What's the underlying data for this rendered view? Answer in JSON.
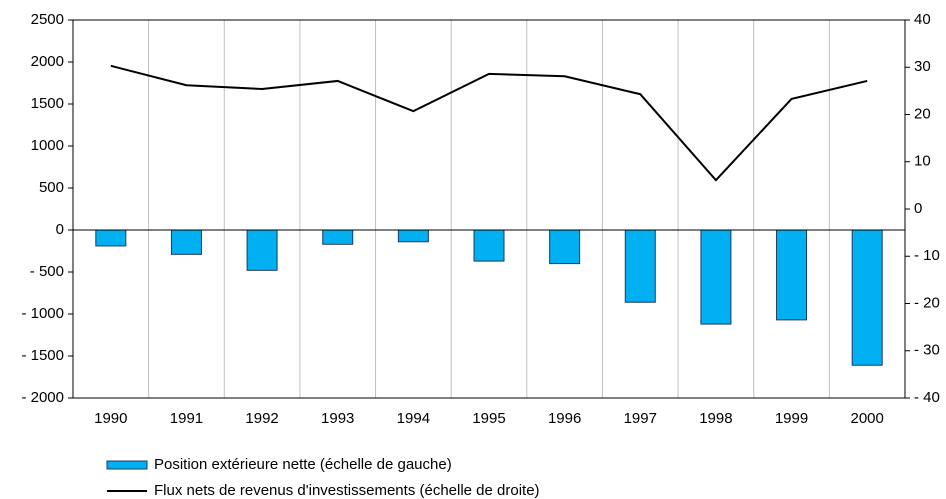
{
  "chart_data": {
    "type": "bar-line",
    "categories": [
      "1990",
      "1991",
      "1992",
      "1993",
      "1994",
      "1995",
      "1996",
      "1997",
      "1998",
      "1999",
      "2000"
    ],
    "series": [
      {
        "name": "Position extérieure nette (échelle de gauche)",
        "type": "bar",
        "color": "#00b0f0",
        "values": [
          -190,
          -290,
          -480,
          -170,
          -140,
          -370,
          -400,
          -860,
          -1120,
          -1070,
          -1610
        ]
      },
      {
        "name": "Flux nets de revenus d'investissements (échelle de droite)",
        "type": "line",
        "color": "#000000",
        "axis": "y2",
        "values": [
          30.3,
          26.2,
          25.4,
          27.1,
          20.7,
          28.6,
          28.1,
          24.3,
          6.1,
          23.3,
          27.1
        ]
      }
    ],
    "ylim": [
      -2000,
      2500
    ],
    "yticks": [
      {
        "value": -2000,
        "label": "- 2000"
      },
      {
        "value": -1500,
        "label": "- 1500"
      },
      {
        "value": -1000,
        "label": "- 1000"
      },
      {
        "value": -500,
        "label": "- 500"
      },
      0,
      500,
      1000,
      1500,
      2000,
      2500
    ],
    "y2lim": [
      -40,
      40
    ],
    "y2ticks": [
      {
        "value": -40,
        "label": "- 40"
      },
      {
        "value": -30,
        "label": "- 30"
      },
      {
        "value": -20,
        "label": "- 20"
      },
      {
        "value": -10,
        "label": "- 10"
      },
      0,
      10,
      20,
      30,
      40
    ],
    "grid": true
  }
}
